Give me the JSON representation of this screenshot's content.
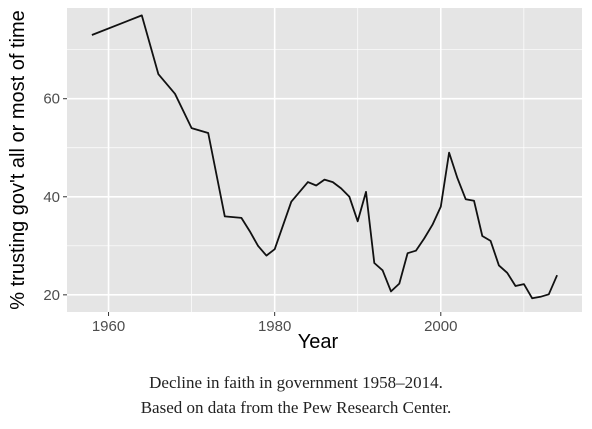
{
  "chart_data": {
    "type": "line",
    "xlabel": "Year",
    "ylabel": "% trusting gov't all or most of time",
    "xlim": [
      1955,
      2017
    ],
    "ylim": [
      16.5,
      78.5
    ],
    "xticks": [
      1960,
      1980,
      2000
    ],
    "yticks": [
      20,
      40,
      60
    ],
    "grid": true,
    "legend": "none",
    "background_color": "#e5e5e5",
    "grid_color": "#ffffff",
    "line_color": "#111111",
    "series": [
      {
        "x": [
          1958,
          1964,
          1966,
          1968,
          1970,
          1972,
          1974,
          1976,
          1977,
          1978,
          1979,
          1980,
          1982,
          1984,
          1985,
          1986,
          1987,
          1988,
          1989,
          1990,
          1991,
          1992,
          1993,
          1994,
          1995,
          1996,
          1997,
          1998,
          1999,
          2000,
          2001,
          2002,
          2003,
          2004,
          2005,
          2006,
          2007,
          2008,
          2009,
          2010,
          2011,
          2012,
          2013,
          2014
        ],
        "y": [
          73,
          77,
          65,
          61,
          54,
          53,
          36,
          35.7,
          33,
          30,
          28,
          29.3,
          39,
          43,
          42.3,
          43.5,
          43,
          41.7,
          40,
          35,
          41,
          26.5,
          25,
          20.7,
          22.3,
          28.5,
          29,
          31.5,
          34.3,
          38,
          49,
          43.8,
          39.5,
          39.2,
          32,
          31,
          26,
          24.5,
          21.8,
          22.2,
          19.3,
          19.6,
          20.1,
          24
        ]
      }
    ]
  },
  "caption": {
    "line1": "Decline in faith in government 1958–2014.",
    "line2": "Based on data from the Pew Research Center."
  }
}
